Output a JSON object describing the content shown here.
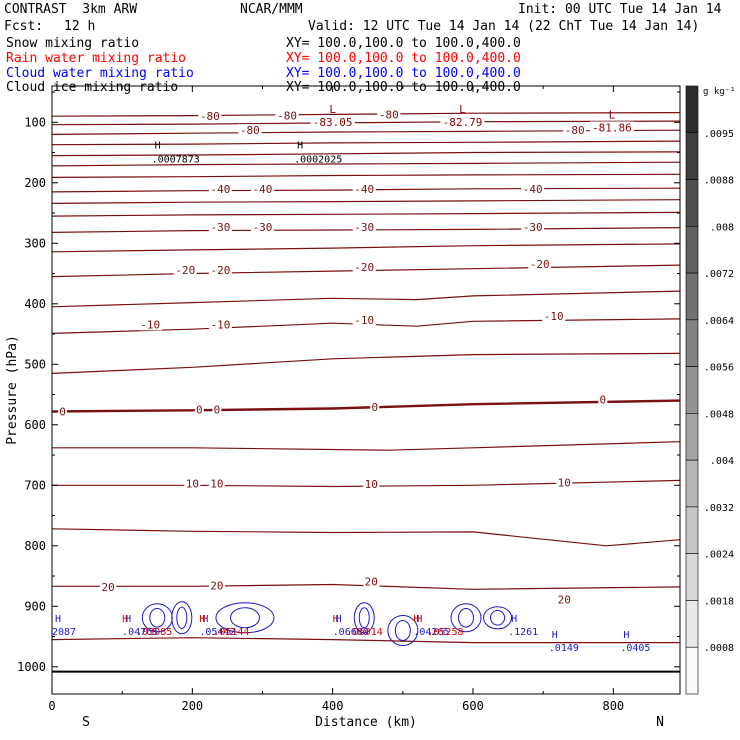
{
  "header": {
    "model": "CONTRAST  3km ARW",
    "org": "NCAR/MMM",
    "init": "Init: 00 UTC Tue 14 Jan 14",
    "fcst_label": "Fcst:",
    "fcst_value": "12 h",
    "valid": "Valid: 12 UTC Tue 14 Jan 14 (22 ChT Tue 14 Jan 14)"
  },
  "legend": [
    {
      "name": "Snow mixing ratio",
      "xy": "XY= 100.0,100.0 to 100.0,400.0",
      "color": "#000000"
    },
    {
      "name": "Rain water mixing ratio",
      "xy": "XY= 100.0,100.0 to 100.0,400.0",
      "color": "#ff0000"
    },
    {
      "name": "Cloud water mixing ratio",
      "xy": "XY= 100.0,100.0 to 100.0,400.0",
      "color": "#0000ff"
    },
    {
      "name": "Cloud ice mixing ratio",
      "xy": "XY= 100.0,100.0 to 100.0,400.0",
      "color": "#000000"
    }
  ],
  "chart_data": {
    "type": "contour",
    "xlabel": "Distance (km)",
    "ylabel": "Pressure (hPa)",
    "xlim": [
      0,
      895
    ],
    "ylim": [
      1045,
      40
    ],
    "x_ticks": [
      0,
      200,
      400,
      600,
      800
    ],
    "y_ticks": [
      100,
      200,
      300,
      400,
      500,
      600,
      700,
      800,
      900,
      1000
    ],
    "left_end_label": "S",
    "right_end_label": "N",
    "ground_pressure": 1008,
    "colorbar": {
      "unit": "g kg⁻¹",
      "labels": [
        ".0095",
        ".0088",
        ".008",
        ".0072",
        ".0064",
        ".0056",
        ".0048",
        ".004",
        ".0032",
        ".0024",
        ".0018",
        ".0008"
      ],
      "levels": 13
    },
    "contour_color": "#7a1010",
    "temperature_contours": [
      {
        "value": -80,
        "points": [
          [
            0,
            90
          ],
          [
            200,
            89
          ],
          [
            400,
            87
          ],
          [
            600,
            85
          ],
          [
            895,
            84
          ]
        ]
      },
      {
        "value": -80,
        "points": [
          [
            0,
            104
          ],
          [
            200,
            103
          ],
          [
            400,
            101
          ],
          [
            600,
            99
          ],
          [
            895,
            98
          ]
        ]
      },
      {
        "value": -80,
        "points": [
          [
            0,
            120
          ],
          [
            200,
            118
          ],
          [
            400,
            116
          ],
          [
            600,
            115
          ],
          [
            895,
            113
          ]
        ]
      },
      {
        "value": -70,
        "points": [
          [
            0,
            137
          ],
          [
            200,
            136
          ],
          [
            400,
            134
          ],
          [
            600,
            133
          ],
          [
            895,
            131
          ]
        ]
      },
      {
        "value": -60,
        "points": [
          [
            0,
            155
          ],
          [
            200,
            154
          ],
          [
            400,
            152
          ],
          [
            600,
            150
          ],
          [
            895,
            149
          ]
        ]
      },
      {
        "value": -55,
        "points": [
          [
            0,
            172
          ],
          [
            200,
            170
          ],
          [
            400,
            169
          ],
          [
            600,
            168
          ],
          [
            895,
            166
          ]
        ]
      },
      {
        "value": -50,
        "points": [
          [
            0,
            191
          ],
          [
            200,
            190
          ],
          [
            400,
            188
          ],
          [
            600,
            187
          ],
          [
            895,
            186
          ]
        ]
      },
      {
        "value": -45,
        "points": [
          [
            0,
            215
          ],
          [
            200,
            213
          ],
          [
            400,
            212
          ],
          [
            600,
            210
          ],
          [
            895,
            209
          ]
        ]
      },
      {
        "value": -40,
        "points": [
          [
            0,
            234
          ],
          [
            200,
            232
          ],
          [
            400,
            231
          ],
          [
            600,
            230
          ],
          [
            895,
            228
          ]
        ]
      },
      {
        "value": -35,
        "points": [
          [
            0,
            255
          ],
          [
            200,
            253
          ],
          [
            400,
            252
          ],
          [
            600,
            251
          ],
          [
            895,
            249
          ]
        ]
      },
      {
        "value": -30,
        "points": [
          [
            0,
            282
          ],
          [
            200,
            279
          ],
          [
            400,
            278
          ],
          [
            600,
            277
          ],
          [
            895,
            274
          ]
        ]
      },
      {
        "value": -25,
        "points": [
          [
            0,
            314
          ],
          [
            200,
            311
          ],
          [
            400,
            308
          ],
          [
            600,
            304
          ],
          [
            895,
            301
          ]
        ]
      },
      {
        "value": -20,
        "points": [
          [
            0,
            355
          ],
          [
            200,
            350
          ],
          [
            400,
            346
          ],
          [
            600,
            342
          ],
          [
            895,
            336
          ]
        ]
      },
      {
        "value": -15,
        "points": [
          [
            0,
            405
          ],
          [
            200,
            398
          ],
          [
            400,
            391
          ],
          [
            520,
            393
          ],
          [
            600,
            387
          ],
          [
            895,
            379
          ]
        ]
      },
      {
        "value": -10,
        "points": [
          [
            0,
            449
          ],
          [
            200,
            442
          ],
          [
            400,
            432
          ],
          [
            520,
            437
          ],
          [
            600,
            429
          ],
          [
            895,
            425
          ]
        ]
      },
      {
        "value": -5,
        "points": [
          [
            0,
            515
          ],
          [
            200,
            505
          ],
          [
            400,
            491
          ],
          [
            600,
            484
          ],
          [
            895,
            482
          ]
        ]
      },
      {
        "value": 0,
        "points": [
          [
            0,
            578
          ],
          [
            200,
            576
          ],
          [
            400,
            573
          ],
          [
            600,
            566
          ],
          [
            895,
            560
          ]
        ],
        "bold": true
      },
      {
        "value": 5,
        "points": [
          [
            0,
            638
          ],
          [
            200,
            638
          ],
          [
            480,
            642
          ],
          [
            600,
            638
          ],
          [
            895,
            628
          ]
        ]
      },
      {
        "value": 10,
        "points": [
          [
            0,
            700
          ],
          [
            200,
            700
          ],
          [
            400,
            702
          ],
          [
            600,
            700
          ],
          [
            895,
            692
          ]
        ]
      },
      {
        "value": 15,
        "points": [
          [
            0,
            772
          ],
          [
            200,
            776
          ],
          [
            400,
            778
          ],
          [
            600,
            777
          ],
          [
            790,
            800
          ],
          [
            895,
            790
          ]
        ]
      },
      {
        "value": 20,
        "points": [
          [
            0,
            867
          ],
          [
            200,
            867
          ],
          [
            400,
            864
          ],
          [
            600,
            872
          ],
          [
            895,
            868
          ]
        ]
      },
      {
        "value": 25,
        "points": [
          [
            0,
            955
          ],
          [
            200,
            952
          ],
          [
            400,
            955
          ],
          [
            600,
            960
          ],
          [
            895,
            960
          ]
        ]
      }
    ],
    "temperature_labels": [
      {
        "text": "-80",
        "x": 225,
        "p": 90
      },
      {
        "text": "-80",
        "x": 335,
        "p": 89
      },
      {
        "text": "-80",
        "x": 480,
        "p": 87
      },
      {
        "text": "-80",
        "x": 282,
        "p": 113
      },
      {
        "text": "-80",
        "x": 745,
        "p": 113
      },
      {
        "text": "-40",
        "x": 240,
        "p": 210
      },
      {
        "text": "-40",
        "x": 300,
        "p": 210
      },
      {
        "text": "-40",
        "x": 445,
        "p": 210
      },
      {
        "text": "-40",
        "x": 685,
        "p": 210
      },
      {
        "text": "-30",
        "x": 240,
        "p": 273
      },
      {
        "text": "-30",
        "x": 300,
        "p": 273
      },
      {
        "text": "-30",
        "x": 445,
        "p": 273
      },
      {
        "text": "-30",
        "x": 685,
        "p": 273
      },
      {
        "text": "-20",
        "x": 190,
        "p": 344
      },
      {
        "text": "-20",
        "x": 240,
        "p": 344
      },
      {
        "text": "-20",
        "x": 445,
        "p": 339
      },
      {
        "text": "-20",
        "x": 695,
        "p": 334
      },
      {
        "text": "-10",
        "x": 140,
        "p": 434
      },
      {
        "text": "-10",
        "x": 240,
        "p": 434
      },
      {
        "text": "-10",
        "x": 445,
        "p": 427
      },
      {
        "text": "-10",
        "x": 715,
        "p": 420
      },
      {
        "text": "0",
        "x": 15,
        "p": 578
      },
      {
        "text": "0",
        "x": 210,
        "p": 575
      },
      {
        "text": "0",
        "x": 235,
        "p": 575
      },
      {
        "text": "0",
        "x": 460,
        "p": 571
      },
      {
        "text": "0",
        "x": 785,
        "p": 558
      },
      {
        "text": "10",
        "x": 200,
        "p": 697
      },
      {
        "text": "10",
        "x": 235,
        "p": 697
      },
      {
        "text": "10",
        "x": 455,
        "p": 698
      },
      {
        "text": "10",
        "x": 730,
        "p": 695
      },
      {
        "text": "20",
        "x": 80,
        "p": 868
      },
      {
        "text": "20",
        "x": 235,
        "p": 866
      },
      {
        "text": "20",
        "x": 455,
        "p": 859
      },
      {
        "text": "20",
        "x": 730,
        "p": 889
      }
    ],
    "lows": [
      {
        "label": "L",
        "value": "-83.05",
        "x": 400,
        "p": 88
      },
      {
        "label": "L",
        "value": "-82.79",
        "x": 585,
        "p": 88
      },
      {
        "label": "L",
        "value": "-81.86",
        "x": 798,
        "p": 97
      }
    ],
    "highs_black": [
      {
        "label": "H",
        "value": ".0007873",
        "x": 142,
        "p": 137
      },
      {
        "label": "H",
        "value": ".0002025",
        "x": 345,
        "p": 137
      }
    ],
    "highs_blue": [
      {
        "label": "H",
        "value": "2087",
        "x": 0,
        "p": 919
      },
      {
        "label": "H",
        "value": ".04765",
        "x": 100,
        "p": 919
      },
      {
        "label": "H",
        "value": ".05442",
        "x": 210,
        "p": 919
      },
      {
        "label": "H",
        "value": ".06680",
        "x": 400,
        "p": 919
      },
      {
        "label": "H",
        "value": ".04265",
        "x": 515,
        "p": 919
      },
      {
        "label": "H",
        "value": ".1261",
        "x": 650,
        "p": 919
      },
      {
        "label": "H",
        "value": ".0149",
        "x": 708,
        "p": 946
      },
      {
        "label": "H",
        "value": ".0405",
        "x": 810,
        "p": 946
      }
    ],
    "highs_red": [
      {
        "label": "H",
        "value": ".03085",
        "x": 100,
        "p": 919
      },
      {
        "label": "H",
        "value": ".05144",
        "x": 210,
        "p": 919
      },
      {
        "label": "H",
        "value": ".06014",
        "x": 400,
        "p": 919
      },
      {
        "label": "H",
        "value": ".05258",
        "x": 515,
        "p": 919
      }
    ],
    "cloud_water_blobs": [
      {
        "x": 150,
        "p": 919,
        "w": 30,
        "h": 28
      },
      {
        "x": 185,
        "p": 919,
        "w": 20,
        "h": 32
      },
      {
        "x": 275,
        "p": 919,
        "w": 58,
        "h": 30
      },
      {
        "x": 445,
        "p": 919,
        "w": 20,
        "h": 30
      },
      {
        "x": 500,
        "p": 940,
        "w": 30,
        "h": 30
      },
      {
        "x": 590,
        "p": 919,
        "w": 30,
        "h": 28
      },
      {
        "x": 635,
        "p": 919,
        "w": 28,
        "h": 22
      }
    ]
  }
}
